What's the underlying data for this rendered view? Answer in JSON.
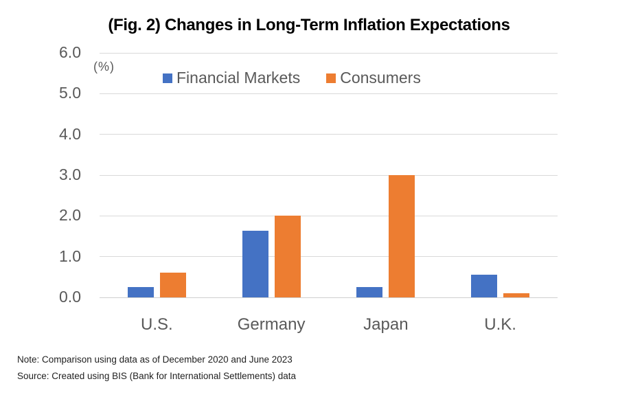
{
  "title": "(Fig. 2) Changes in Long-Term Inflation Expectations",
  "y_axis_unit": "(%)",
  "notes": [
    "Note: Comparison using data as of December 2020 and June 2023",
    "Source: Created using BIS (Bank for International Settlements) data"
  ],
  "colors": {
    "financial_markets": "#4472C4",
    "consumers": "#ED7D31",
    "gridline": "#d9d9d9",
    "axis_text": "#595959"
  },
  "chart_data": {
    "type": "bar",
    "title": "(Fig. 2) Changes in Long-Term Inflation Expectations",
    "categories": [
      "U.S.",
      "Germany",
      "Japan",
      "U.K."
    ],
    "series": [
      {
        "name": "Financial Markets",
        "color": "#4472C4",
        "values": [
          0.25,
          1.63,
          0.25,
          0.55
        ]
      },
      {
        "name": "Consumers",
        "color": "#ED7D31",
        "values": [
          0.6,
          2.0,
          3.0,
          0.1
        ]
      }
    ],
    "xlabel": "",
    "ylabel": "(%)",
    "ylim": [
      0,
      6
    ],
    "ytick_step": 1.0,
    "ytick_decimals": 1,
    "grid": true,
    "legend_position": "top"
  }
}
